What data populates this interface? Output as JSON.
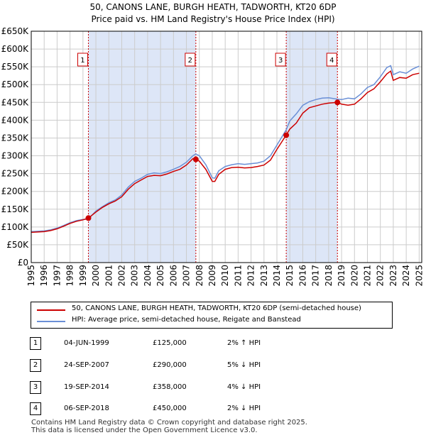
{
  "title_line1": "50, CANONS LANE, BURGH HEATH, TADWORTH, KT20 6DP",
  "title_line2": "Price paid vs. HM Land Registry's House Price Index (HPI)",
  "legend": {
    "property_label": "50, CANONS LANE, BURGH HEATH, TADWORTH, KT20 6DP (semi-detached house)",
    "hpi_label": "HPI: Average price, semi-detached house, Reigate and Banstead"
  },
  "colors": {
    "property": "#cc0000",
    "hpi": "#6a8fd6",
    "shade": "#dde6f7",
    "grid": "#cccccc",
    "marker_border": "#cc0000"
  },
  "transactions": [
    {
      "num": "1",
      "date": "04-JUN-1999",
      "price": "£125,000",
      "hpi": "2% ↑ HPI"
    },
    {
      "num": "2",
      "date": "24-SEP-2007",
      "price": "£290,000",
      "hpi": "5% ↓ HPI"
    },
    {
      "num": "3",
      "date": "19-SEP-2014",
      "price": "£358,000",
      "hpi": "4% ↓ HPI"
    },
    {
      "num": "4",
      "date": "06-SEP-2018",
      "price": "£450,000",
      "hpi": "2% ↓ HPI"
    }
  ],
  "footer_line1": "Contains HM Land Registry data © Crown copyright and database right 2025.",
  "footer_line2": "This data is licensed under the Open Government Licence v3.0.",
  "chart_data": {
    "type": "line",
    "title": "50, CANONS LANE, BURGH HEATH, TADWORTH, KT20 6DP",
    "subtitle": "Price paid vs. HM Land Registry's House Price Index (HPI)",
    "xlabel": "",
    "ylabel": "",
    "xlim": [
      1995,
      2025.2
    ],
    "ylim": [
      0,
      650000
    ],
    "y_ticks": [
      0,
      50000,
      100000,
      150000,
      200000,
      250000,
      300000,
      350000,
      400000,
      450000,
      500000,
      550000,
      600000,
      650000
    ],
    "y_tick_labels": [
      "£0",
      "£50K",
      "£100K",
      "£150K",
      "£200K",
      "£250K",
      "£300K",
      "£350K",
      "£400K",
      "£450K",
      "£500K",
      "£550K",
      "£600K",
      "£650K"
    ],
    "x_ticks": [
      "1995",
      "1996",
      "1997",
      "1998",
      "1999",
      "2000",
      "2001",
      "2002",
      "2003",
      "2004",
      "2005",
      "2006",
      "2007",
      "2008",
      "2009",
      "2010",
      "2011",
      "2012",
      "2013",
      "2014",
      "2015",
      "2016",
      "2017",
      "2018",
      "2019",
      "2020",
      "2021",
      "2022",
      "2023",
      "2024",
      "2025"
    ],
    "grid": true,
    "shaded_ranges": [
      [
        1999.42,
        2007.73
      ],
      [
        2014.72,
        2018.68
      ]
    ],
    "sales": [
      {
        "label": "1",
        "x": 1999.42,
        "y": 125000
      },
      {
        "label": "2",
        "x": 2007.73,
        "y": 290000
      },
      {
        "label": "3",
        "x": 2014.72,
        "y": 358000
      },
      {
        "label": "4",
        "x": 2018.68,
        "y": 450000
      }
    ],
    "series": [
      {
        "name": "HPI: Average price, semi-detached house, Reigate and Banstead",
        "x": [
          1995,
          1995.5,
          1996,
          1996.5,
          1997,
          1997.5,
          1998,
          1998.5,
          1999,
          1999.42,
          2000,
          2000.5,
          2001,
          2001.5,
          2002,
          2002.5,
          2003,
          2003.5,
          2004,
          2004.5,
          2005,
          2005.5,
          2006,
          2006.5,
          2007,
          2007.5,
          2007.73,
          2008,
          2008.5,
          2009,
          2009.2,
          2009.5,
          2010,
          2010.5,
          2011,
          2011.5,
          2012,
          2012.5,
          2013,
          2013.5,
          2014,
          2014.72,
          2015,
          2015.5,
          2016,
          2016.5,
          2017,
          2017.5,
          2018,
          2018.68,
          2019,
          2019.5,
          2020,
          2020.5,
          2021,
          2021.5,
          2022,
          2022.5,
          2022.8,
          2023,
          2023.5,
          2024,
          2024.5,
          2025
        ],
        "values": [
          87000,
          88000,
          89000,
          92000,
          97000,
          104000,
          112000,
          118000,
          121000,
          122500,
          145000,
          157000,
          168000,
          176000,
          190000,
          212000,
          228000,
          237000,
          248000,
          252000,
          250000,
          255000,
          262000,
          270000,
          282000,
          300000,
          305000,
          300000,
          275000,
          238000,
          237000,
          258000,
          270000,
          275000,
          278000,
          276000,
          278000,
          280000,
          285000,
          300000,
          330000,
          373000,
          398000,
          418000,
          442000,
          452000,
          458000,
          462000,
          463000,
          459000,
          458000,
          462000,
          460000,
          474000,
          492000,
          500000,
          522000,
          548000,
          553000,
          528000,
          536000,
          532000,
          544000,
          552000
        ]
      },
      {
        "name": "50, CANONS LANE, BURGH HEATH, TADWORTH, KT20 6DP (semi-detached house)",
        "x": [
          1995,
          1995.5,
          1996,
          1996.5,
          1997,
          1997.5,
          1998,
          1998.5,
          1999,
          1999.42,
          2000,
          2000.5,
          2001,
          2001.5,
          2002,
          2002.5,
          2003,
          2003.5,
          2004,
          2004.5,
          2005,
          2005.5,
          2006,
          2006.5,
          2007,
          2007.5,
          2007.73,
          2008,
          2008.5,
          2009,
          2009.2,
          2009.5,
          2010,
          2010.5,
          2011,
          2011.5,
          2012,
          2012.5,
          2013,
          2013.5,
          2014,
          2014.72,
          2015,
          2015.5,
          2016,
          2016.5,
          2017,
          2017.5,
          2018,
          2018.68,
          2019,
          2019.5,
          2020,
          2020.5,
          2021,
          2021.5,
          2022,
          2022.5,
          2022.8,
          2023,
          2023.5,
          2024,
          2024.5,
          2025
        ],
        "values": [
          85000,
          86000,
          87000,
          90000,
          95000,
          102000,
          110000,
          116000,
          120000,
          125000,
          142000,
          155000,
          165000,
          173000,
          185000,
          206000,
          222000,
          232000,
          242000,
          245000,
          244000,
          249000,
          256000,
          262000,
          274000,
          292000,
          290000,
          285000,
          262000,
          228000,
          228000,
          248000,
          262000,
          267000,
          268000,
          266000,
          267000,
          270000,
          274000,
          288000,
          318000,
          358000,
          375000,
          392000,
          420000,
          435000,
          440000,
          445000,
          448000,
          450000,
          445000,
          442000,
          445000,
          460000,
          478000,
          488000,
          508000,
          530000,
          538000,
          512000,
          520000,
          518000,
          528000,
          532000
        ]
      }
    ]
  }
}
